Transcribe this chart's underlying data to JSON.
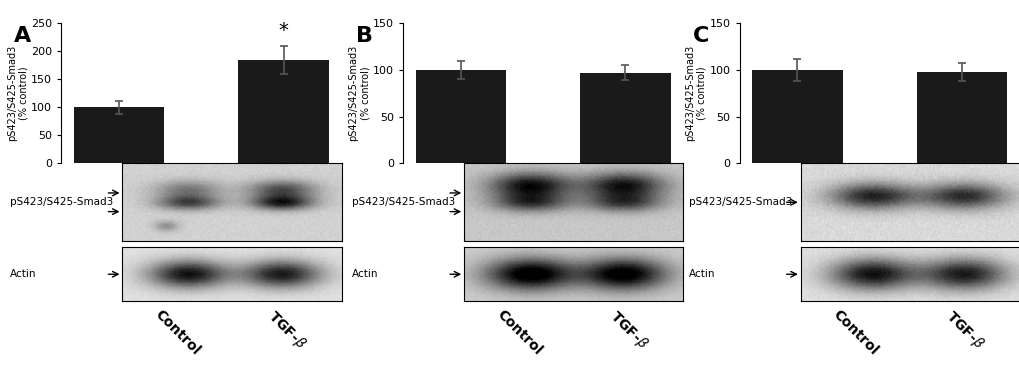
{
  "panel_A": {
    "label": "A",
    "bar_values": [
      100,
      185
    ],
    "bar_errors": [
      12,
      25
    ],
    "ylim": [
      0,
      250
    ],
    "yticks": [
      0,
      50,
      100,
      150,
      200,
      250
    ],
    "ylabel": "pS423/S425-Smad3\n(% control)",
    "categories": [
      "Control",
      "TGF-β"
    ],
    "star": true,
    "wb_label1": "pS423/S425-Smad3",
    "wb_label2": "Actin",
    "double_arrow": true
  },
  "panel_B": {
    "label": "B",
    "bar_values": [
      100,
      97
    ],
    "bar_errors": [
      10,
      8
    ],
    "ylim": [
      0,
      150
    ],
    "yticks": [
      0,
      50,
      100,
      150
    ],
    "ylabel": "pS423/S425-Smad3\n(% control)",
    "categories": [
      "Control",
      "TGF-β"
    ],
    "star": false,
    "wb_label1": "pS423/S425-Smad3",
    "wb_label2": "Actin",
    "double_arrow": true
  },
  "panel_C": {
    "label": "C",
    "bar_values": [
      100,
      98
    ],
    "bar_errors": [
      12,
      10
    ],
    "ylim": [
      0,
      150
    ],
    "yticks": [
      0,
      50,
      100,
      150
    ],
    "ylabel": "pS423/S425-Smad3\n(% control)",
    "categories": [
      "Control",
      "TGF-β"
    ],
    "star": false,
    "wb_label1": "pS423/S425-Smad3",
    "wb_label2": "Actin",
    "double_arrow": false
  },
  "bar_color": "#1a1a1a",
  "bar_width": 0.55,
  "background_color": "#ffffff",
  "tick_fontsize": 8,
  "ylabel_fontsize": 7,
  "xlabel_fontsize": 10,
  "panel_label_fontsize": 16,
  "wb_label_fontsize": 7.5
}
